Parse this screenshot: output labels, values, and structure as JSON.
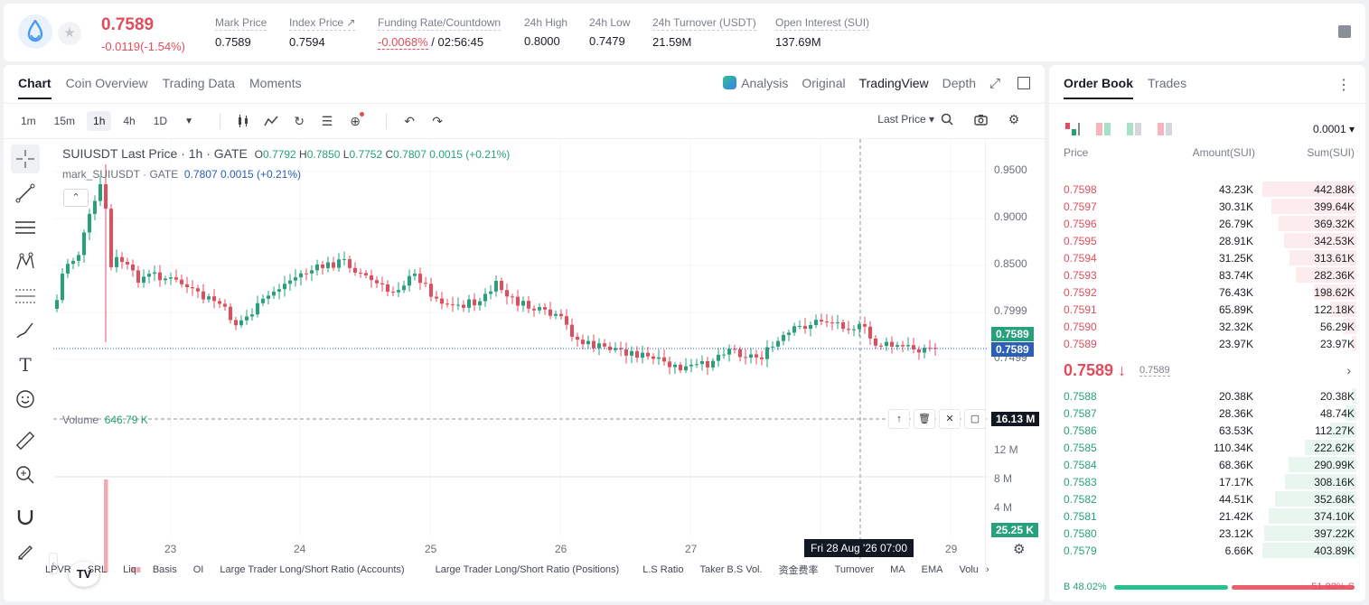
{
  "header": {
    "last_price": "0.7589",
    "change": "-0.0119(-1.54%)",
    "stats": [
      {
        "label": "Mark Price",
        "value": "0.7589"
      },
      {
        "label": "Index Price ↗",
        "value": "0.7594"
      },
      {
        "label": "Funding Rate/Countdown",
        "value_neg": "-0.0068%",
        "value": " / 02:56:45"
      },
      {
        "label": "24h High",
        "value": "0.8000"
      },
      {
        "label": "24h Low",
        "value": "0.7479"
      },
      {
        "label": "24h Turnover (USDT)",
        "value": "21.59M"
      },
      {
        "label": "Open Interest (SUI)",
        "value": "137.69M"
      }
    ]
  },
  "chart_tabs": [
    "Chart",
    "Coin Overview",
    "Trading Data",
    "Moments"
  ],
  "view_tabs": [
    "Analysis",
    "Original",
    "TradingView",
    "Depth"
  ],
  "intervals": [
    "1m",
    "15m",
    "1h",
    "4h",
    "1D"
  ],
  "price_type": "Last Price ▾",
  "legend": {
    "title": "SUIUSDT Last Price · 1h · GATE",
    "o": "0.7792",
    "h": "0.7850",
    "l": "0.7752",
    "c": "0.7807",
    "chg": "0.0015 (+0.21%)",
    "mark_name": "mark_SUIUSDT · GATE",
    "mark_vals": "0.7807  0.0015  (+0.21%)",
    "volume_label": "Volume",
    "volume_value": "646.79 K"
  },
  "y_axis": [
    "0.9500",
    "0.9000",
    "0.8500",
    "0.7999",
    "0.7499"
  ],
  "price_tags": {
    "last": "0.7589",
    "mark": "0.7589",
    "volume": "16.13 M",
    "vol_current": "25.25 K"
  },
  "vol_axis": [
    "12 M",
    "8 M",
    "4 M"
  ],
  "x_axis": [
    "23",
    "24",
    "25",
    "26",
    "27",
    "29"
  ],
  "crosshair_time": "Fri 28 Aug '26   07:00",
  "indicators": [
    "LPVR",
    "SRL",
    "Liq",
    "Basis",
    "OI",
    "Large Trader Long/Short Ratio (Accounts)",
    "Large Trader Long/Short Ratio (Positions)",
    "L.S Ratio",
    "Taker B.S Vol.",
    "资金费率",
    "Turnover",
    "MA",
    "EMA",
    "Volu"
  ],
  "orderbook": {
    "tabs": [
      "Order Book",
      "Trades"
    ],
    "precision": "0.0001 ▾",
    "headers": [
      "Price",
      "Amount(SUI)",
      "Sum(SUI)"
    ],
    "asks": [
      {
        "price": "0.7598",
        "amount": "43.23K",
        "sum": "442.88K",
        "depth": 1.0
      },
      {
        "price": "0.7597",
        "amount": "30.31K",
        "sum": "399.64K",
        "depth": 0.9
      },
      {
        "price": "0.7596",
        "amount": "26.79K",
        "sum": "369.32K",
        "depth": 0.83
      },
      {
        "price": "0.7595",
        "amount": "28.91K",
        "sum": "342.53K",
        "depth": 0.77
      },
      {
        "price": "0.7594",
        "amount": "31.25K",
        "sum": "313.61K",
        "depth": 0.71
      },
      {
        "price": "0.7593",
        "amount": "83.74K",
        "sum": "282.36K",
        "depth": 0.64
      },
      {
        "price": "0.7592",
        "amount": "76.43K",
        "sum": "198.62K",
        "depth": 0.45
      },
      {
        "price": "0.7591",
        "amount": "65.89K",
        "sum": "122.18K",
        "depth": 0.28
      },
      {
        "price": "0.7590",
        "amount": "32.32K",
        "sum": "56.29K",
        "depth": 0.13
      },
      {
        "price": "0.7589",
        "amount": "23.97K",
        "sum": "23.97K",
        "depth": 0.05
      }
    ],
    "mid_price": "0.7589 ↓",
    "mid_mark": "0.7589",
    "bids": [
      {
        "price": "0.7588",
        "amount": "20.38K",
        "sum": "20.38K",
        "depth": 0.05
      },
      {
        "price": "0.7587",
        "amount": "28.36K",
        "sum": "48.74K",
        "depth": 0.12
      },
      {
        "price": "0.7586",
        "amount": "63.53K",
        "sum": "112.27K",
        "depth": 0.28
      },
      {
        "price": "0.7585",
        "amount": "110.34K",
        "sum": "222.62K",
        "depth": 0.55
      },
      {
        "price": "0.7584",
        "amount": "68.36K",
        "sum": "290.99K",
        "depth": 0.72
      },
      {
        "price": "0.7583",
        "amount": "17.17K",
        "sum": "308.16K",
        "depth": 0.76
      },
      {
        "price": "0.7582",
        "amount": "44.51K",
        "sum": "352.68K",
        "depth": 0.87
      },
      {
        "price": "0.7581",
        "amount": "21.42K",
        "sum": "374.10K",
        "depth": 0.93
      },
      {
        "price": "0.7580",
        "amount": "23.12K",
        "sum": "397.22K",
        "depth": 0.98
      },
      {
        "price": "0.7579",
        "amount": "6.66K",
        "sum": "403.89K",
        "depth": 1.0
      }
    ],
    "buy_ratio": "B 48.02%",
    "sell_ratio": "51.98% S",
    "buy_fraction": 0.4802
  },
  "colors": {
    "up": "#26a17b",
    "down": "#e14d5c",
    "mark": "#2b5fb5"
  }
}
